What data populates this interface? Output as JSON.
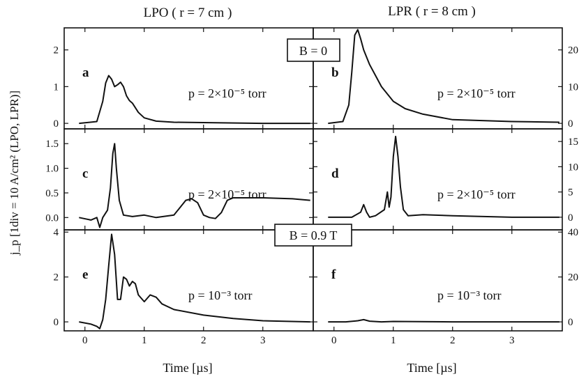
{
  "chart_data": {
    "type": "line",
    "column_titles": [
      "LPO ( r = 7 cm )",
      "LPR ( r = 8 cm )"
    ],
    "xlabel": "Time [µs]",
    "ylabel": "j_p [1div = 10 A/cm² (LPO, LPR)]",
    "xlim": [
      -0.35,
      3.85
    ],
    "x_ticks": [
      0,
      1,
      2,
      3
    ],
    "x_tick_labels": [
      "0",
      "1",
      "2",
      "3"
    ],
    "field_labels": [
      "B = 0",
      "B = 0.9 T"
    ],
    "panels": [
      {
        "letter": "a",
        "column": "LPO",
        "row": 0,
        "axis_side": "left",
        "pressure": "p = 2×10⁻⁵ torr",
        "ylim": [
          -0.15,
          2.6
        ],
        "y_ticks": [
          0,
          1,
          2
        ],
        "y_tick_labels": [
          "0",
          "1",
          "2"
        ],
        "x": [
          -0.1,
          0.2,
          0.3,
          0.35,
          0.4,
          0.45,
          0.5,
          0.55,
          0.6,
          0.65,
          0.7,
          0.75,
          0.8,
          0.9,
          1.0,
          1.2,
          1.5,
          2.0,
          3.0,
          3.8
        ],
        "y": [
          0.0,
          0.05,
          0.6,
          1.1,
          1.3,
          1.2,
          1.0,
          1.05,
          1.12,
          1.0,
          0.75,
          0.62,
          0.55,
          0.3,
          0.15,
          0.06,
          0.03,
          0.02,
          0.0,
          0.0
        ]
      },
      {
        "letter": "b",
        "column": "LPR",
        "row": 0,
        "axis_side": "right",
        "pressure": "p = 2×10⁻⁵ torr",
        "ylim": [
          -1.5,
          26
        ],
        "y_ticks": [
          0,
          10,
          20
        ],
        "y_tick_labels": [
          "0",
          "10",
          "20"
        ],
        "x": [
          -0.1,
          0.15,
          0.25,
          0.3,
          0.35,
          0.4,
          0.45,
          0.5,
          0.6,
          0.7,
          0.8,
          1.0,
          1.2,
          1.5,
          2.0,
          3.0,
          3.8
        ],
        "y": [
          0.0,
          0.5,
          5.0,
          14.0,
          24.0,
          25.5,
          23.0,
          20.0,
          16.0,
          13.0,
          10.0,
          6.0,
          4.0,
          2.5,
          1.0,
          0.5,
          0.3
        ]
      },
      {
        "letter": "c",
        "column": "LPO",
        "row": 1,
        "axis_side": "left",
        "pressure": "p = 2×10⁻⁵ torr",
        "ylim": [
          -0.25,
          1.8
        ],
        "y_ticks": [
          0,
          0.5,
          1,
          1.5
        ],
        "y_tick_labels": [
          "0.0",
          "0.5",
          "1.0",
          "1.5"
        ],
        "x": [
          -0.1,
          0.1,
          0.2,
          0.25,
          0.3,
          0.38,
          0.43,
          0.47,
          0.5,
          0.53,
          0.58,
          0.65,
          0.8,
          1.0,
          1.2,
          1.5,
          1.6,
          1.7,
          1.8,
          1.9,
          2.0,
          2.1,
          2.2,
          2.3,
          2.4,
          2.5,
          3.0,
          3.5,
          3.8
        ],
        "y": [
          0.0,
          -0.05,
          0.0,
          -0.2,
          0.0,
          0.15,
          0.6,
          1.3,
          1.5,
          1.0,
          0.35,
          0.05,
          0.02,
          0.05,
          0.0,
          0.05,
          0.2,
          0.35,
          0.38,
          0.3,
          0.05,
          0.0,
          -0.02,
          0.1,
          0.35,
          0.4,
          0.4,
          0.38,
          0.35
        ]
      },
      {
        "letter": "d",
        "column": "LPR",
        "row": 1,
        "axis_side": "right",
        "pressure": "p = 2×10⁻⁵ torr",
        "ylim": [
          -2.5,
          17.5
        ],
        "y_ticks": [
          0,
          5,
          10,
          15
        ],
        "y_tick_labels": [
          "0",
          "5",
          "10",
          "15"
        ],
        "x": [
          -0.1,
          0.3,
          0.45,
          0.5,
          0.55,
          0.6,
          0.7,
          0.85,
          0.9,
          0.93,
          0.96,
          1.0,
          1.04,
          1.08,
          1.12,
          1.17,
          1.25,
          1.5,
          2.0,
          3.0,
          3.8
        ],
        "y": [
          0.0,
          0.0,
          1.0,
          2.5,
          1.0,
          0.0,
          0.3,
          1.5,
          5.0,
          2.0,
          4.0,
          12.0,
          16.0,
          12.0,
          6.0,
          1.5,
          0.3,
          0.5,
          0.3,
          0.0,
          0.0
        ]
      },
      {
        "letter": "e",
        "column": "LPO",
        "row": 2,
        "axis_side": "left",
        "pressure": "p = 10⁻³ torr",
        "ylim": [
          -0.4,
          4.1
        ],
        "y_ticks": [
          0,
          2,
          4
        ],
        "y_tick_labels": [
          "0",
          "2",
          "4"
        ],
        "x": [
          -0.1,
          0.1,
          0.2,
          0.25,
          0.3,
          0.35,
          0.4,
          0.45,
          0.5,
          0.55,
          0.6,
          0.65,
          0.7,
          0.75,
          0.8,
          0.85,
          0.9,
          1.0,
          1.1,
          1.2,
          1.3,
          1.5,
          2.0,
          2.5,
          3.0,
          3.8
        ],
        "y": [
          0.0,
          -0.1,
          -0.2,
          -0.3,
          0.1,
          1.0,
          2.5,
          3.9,
          3.0,
          1.0,
          1.0,
          2.0,
          1.9,
          1.6,
          1.8,
          1.7,
          1.2,
          0.9,
          1.2,
          1.1,
          0.8,
          0.55,
          0.3,
          0.15,
          0.05,
          0.0
        ]
      },
      {
        "letter": "f",
        "column": "LPR",
        "row": 2,
        "axis_side": "right",
        "pressure": "p = 10⁻³ torr",
        "ylim": [
          -4,
          41
        ],
        "y_ticks": [
          0,
          20,
          40
        ],
        "y_tick_labels": [
          "0",
          "20",
          "40"
        ],
        "x": [
          -0.1,
          0.2,
          0.4,
          0.5,
          0.6,
          0.8,
          1.0,
          2.0,
          3.0,
          3.8
        ],
        "y": [
          0.0,
          0.0,
          0.5,
          1.0,
          0.3,
          0.0,
          0.2,
          0.0,
          0.0,
          0.0
        ]
      }
    ]
  }
}
